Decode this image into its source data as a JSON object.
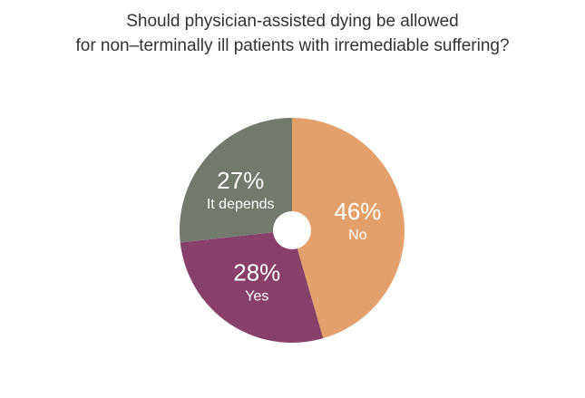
{
  "chart_data": {
    "type": "pie",
    "title": "Should physician-assisted dying be allowed for non–terminally ill patients with irremediable suffering?",
    "title_lines": [
      "Should physician-assisted dying be allowed",
      "for non–terminally ill patients with irremediable suffering?"
    ],
    "donut_hole": true,
    "slices": [
      {
        "label": "No",
        "value": 46,
        "display": "46%",
        "color": "#e4a06a"
      },
      {
        "label": "Yes",
        "value": 28,
        "display": "28%",
        "color": "#874169"
      },
      {
        "label": "It depends",
        "value": 27,
        "display": "27%",
        "color": "#727a6e"
      }
    ]
  }
}
